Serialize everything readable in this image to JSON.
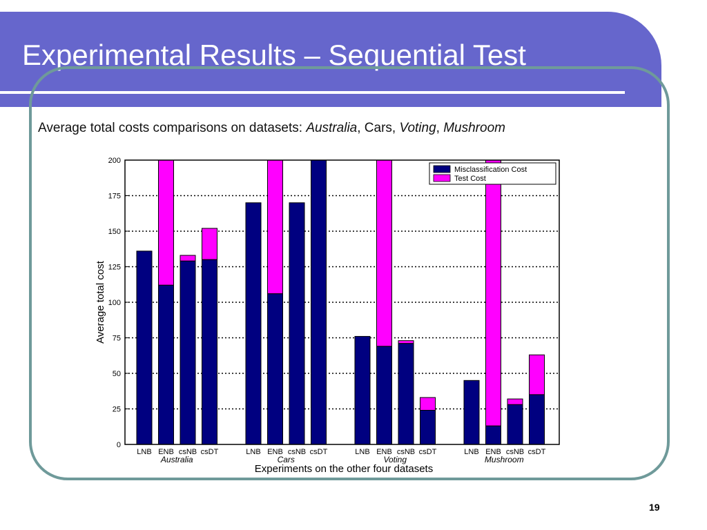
{
  "slide": {
    "title": "Experimental Results – Sequential Test",
    "subtitle": {
      "prefix": "Average total costs comparisons on datasets: ",
      "d1": "Australia",
      "sep1": ", ",
      "d2": "Cars",
      "sep2": ", ",
      "d3": "Voting",
      "sep3": ", ",
      "d4": "Mushroom"
    },
    "page_number": "19"
  },
  "colors": {
    "title_bar": "#6666cc",
    "frame": "#6f9a9a",
    "misclassification": "#000080",
    "test": "#ff00ff"
  },
  "chart_data": {
    "type": "bar",
    "stacked": true,
    "ylabel": "Average total cost",
    "xlabel": "Experiments on the other four datasets",
    "ylim": [
      0,
      200
    ],
    "yticks": [
      0,
      25,
      50,
      75,
      100,
      125,
      150,
      175,
      200
    ],
    "grid": "horizontal dotted",
    "legend_position": "top-right",
    "series_names": [
      "Misclassification Cost",
      "Test Cost"
    ],
    "groups": [
      {
        "name": "Australia",
        "categories": [
          "LNB",
          "ENB",
          "csNB",
          "csDT"
        ],
        "misclassification": [
          136,
          112,
          129,
          130
        ],
        "test": [
          0,
          88,
          4,
          22
        ]
      },
      {
        "name": "Cars",
        "categories": [
          "LNB",
          "ENB",
          "csNB",
          "csDT"
        ],
        "misclassification": [
          170,
          106,
          170,
          200
        ],
        "test": [
          0,
          94,
          0,
          0
        ]
      },
      {
        "name": "Voting",
        "categories": [
          "LNB",
          "ENB",
          "csNB",
          "csDT"
        ],
        "misclassification": [
          76,
          69,
          71,
          24
        ],
        "test": [
          0,
          131,
          2,
          9
        ]
      },
      {
        "name": "Mushroom",
        "categories": [
          "LNB",
          "ENB",
          "csNB",
          "csDT"
        ],
        "misclassification": [
          45,
          13,
          28,
          35
        ],
        "test": [
          0,
          187,
          4,
          28
        ]
      }
    ]
  }
}
